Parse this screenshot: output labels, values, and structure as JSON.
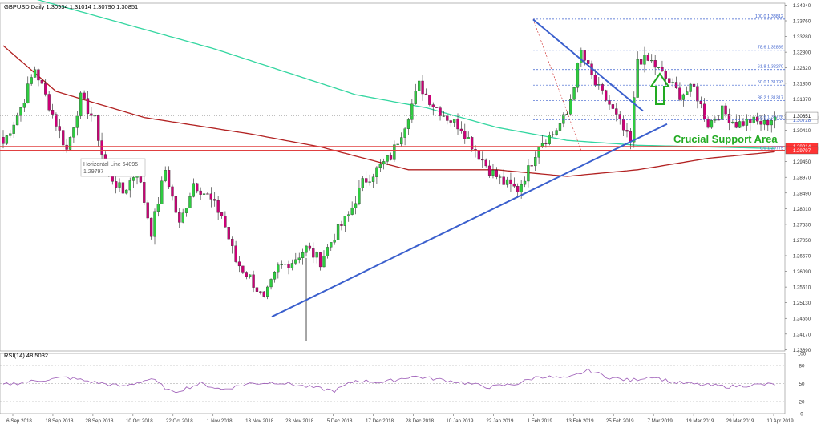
{
  "header": {
    "symbol_info": "GBPUSD,Daily  1.30934 1.31014 1.30790 1.30851",
    "rsi_label": "RSI(14) 48.5032"
  },
  "annotations": {
    "crucial_support": "Crucial Support Area",
    "horizontal_line_name": "Horizontal Line 64095",
    "horizontal_line_value": "1.29797"
  },
  "colors": {
    "bull": "#2ecc40",
    "bear": "#cc0077",
    "ma_fast": "#33d6a0",
    "ma_slow": "#b22222",
    "trendline": "#3a5fcd",
    "support": "#e04040",
    "fib": "#3a5fcd",
    "rsi": "#9b59b6",
    "arrow": "#22aa22",
    "text": "#333333",
    "grid": "#bbbbbb"
  },
  "chart_data": [
    {
      "type": "candlestick",
      "title": "GBPUSD,Daily",
      "price_axis_ticks": [
        "1.34240",
        "1.33760",
        "1.33280",
        "1.32800",
        "1.32320",
        "1.31850",
        "1.31370",
        "1.30890",
        "1.30410",
        "1.29930",
        "1.29450",
        "1.28970",
        "1.28490",
        "1.28010",
        "1.27530",
        "1.27050",
        "1.26570",
        "1.26090",
        "1.25610",
        "1.25130",
        "1.24650",
        "1.24170",
        "1.23690"
      ],
      "ylim": [
        1.2365,
        1.343
      ],
      "x_axis_ticks": [
        "6 Sep 2018",
        "18 Sep 2018",
        "28 Sep 2018",
        "10 Oct 2018",
        "22 Oct 2018",
        "1 Nov 2018",
        "13 Nov 2018",
        "23 Nov 2018",
        "5 Dec 2018",
        "17 Dec 2018",
        "28 Dec 2018",
        "10 Jan 2019",
        "22 Jan 2019",
        "1 Feb 2019",
        "13 Feb 2019",
        "25 Feb 2019",
        "7 Mar 2019",
        "19 Mar 2019",
        "29 Mar 2019",
        "10 Apr 2019"
      ],
      "current_price": "1.30851",
      "price_label_fib23": "1.30728",
      "price_label_support_top": "1.29914",
      "price_label_support_bottom": "1.29797",
      "fib_levels": [
        {
          "label": "100.0 1.33812",
          "value": 1.33812
        },
        {
          "label": "78.6 1.32859",
          "value": 1.32859
        },
        {
          "label": "61.8 1.32270",
          "value": 1.3227
        },
        {
          "label": "50.0 1.31793",
          "value": 1.31793
        },
        {
          "label": "38.2 1.31317",
          "value": 1.31317
        },
        {
          "label": "23.6 1.30728",
          "value": 1.30728
        },
        {
          "label": "0.0 1.29775",
          "value": 1.29775
        }
      ],
      "support_zone": [
        1.29797,
        1.29914
      ],
      "waypoints": [
        [
          0,
          1.3
        ],
        [
          5,
          1.311
        ],
        [
          9,
          1.323
        ],
        [
          14,
          1.309
        ],
        [
          18,
          1.298
        ],
        [
          22,
          1.314
        ],
        [
          26,
          1.307
        ],
        [
          29,
          1.292
        ],
        [
          34,
          1.285
        ],
        [
          38,
          1.292
        ],
        [
          42,
          1.273
        ],
        [
          46,
          1.292
        ],
        [
          50,
          1.275
        ],
        [
          54,
          1.288
        ],
        [
          58,
          1.284
        ],
        [
          62,
          1.278
        ],
        [
          66,
          1.264
        ],
        [
          70,
          1.259
        ],
        [
          74,
          1.252
        ],
        [
          78,
          1.262
        ],
        [
          82,
          1.264
        ],
        [
          86,
          1.268
        ],
        [
          90,
          1.264
        ],
        [
          94,
          1.272
        ],
        [
          98,
          1.278
        ],
        [
          102,
          1.288
        ],
        [
          106,
          1.292
        ],
        [
          110,
          1.296
        ],
        [
          114,
          1.306
        ],
        [
          118,
          1.318
        ],
        [
          122,
          1.312
        ],
        [
          126,
          1.308
        ],
        [
          130,
          1.305
        ],
        [
          134,
          1.298
        ],
        [
          138,
          1.292
        ],
        [
          142,
          1.288
        ],
        [
          146,
          1.286
        ],
        [
          149,
          1.292
        ],
        [
          152,
          1.3
        ],
        [
          156,
          1.303
        ],
        [
          160,
          1.309
        ],
        [
          164,
          1.328
        ],
        [
          168,
          1.318
        ],
        [
          172,
          1.312
        ],
        [
          176,
          1.304
        ],
        [
          178,
          1.3
        ],
        [
          180,
          1.326
        ],
        [
          184,
          1.325
        ],
        [
          188,
          1.32
        ],
        [
          192,
          1.315
        ],
        [
          196,
          1.317
        ],
        [
          200,
          1.306
        ],
        [
          204,
          1.31
        ],
        [
          208,
          1.306
        ],
        [
          212,
          1.307
        ],
        [
          216,
          1.306
        ],
        [
          219,
          1.3085
        ]
      ],
      "ma_fast": [
        [
          0,
          1.347
        ],
        [
          60,
          1.329
        ],
        [
          100,
          1.315
        ],
        [
          120,
          1.311
        ],
        [
          140,
          1.305
        ],
        [
          160,
          1.301
        ],
        [
          180,
          1.2995
        ],
        [
          219,
          1.2985
        ]
      ],
      "ma_slow": [
        [
          0,
          1.33
        ],
        [
          15,
          1.316
        ],
        [
          40,
          1.308
        ],
        [
          70,
          1.303
        ],
        [
          90,
          1.299
        ],
        [
          115,
          1.292
        ],
        [
          140,
          1.292
        ],
        [
          160,
          1.29
        ],
        [
          180,
          1.292
        ],
        [
          200,
          1.2955
        ],
        [
          219,
          1.2975
        ]
      ]
    },
    {
      "type": "line",
      "title": "RSI(14) 48.5032",
      "ylim": [
        0,
        100
      ],
      "y_ticks": [
        100,
        80,
        50,
        20,
        0
      ],
      "waypoints": [
        [
          0,
          48
        ],
        [
          10,
          55
        ],
        [
          18,
          60
        ],
        [
          26,
          52
        ],
        [
          34,
          45
        ],
        [
          42,
          58
        ],
        [
          48,
          35
        ],
        [
          56,
          50
        ],
        [
          62,
          40
        ],
        [
          70,
          50
        ],
        [
          78,
          52
        ],
        [
          86,
          45
        ],
        [
          94,
          38
        ],
        [
          100,
          55
        ],
        [
          108,
          52
        ],
        [
          116,
          62
        ],
        [
          122,
          58
        ],
        [
          130,
          52
        ],
        [
          138,
          44
        ],
        [
          146,
          50
        ],
        [
          152,
          62
        ],
        [
          160,
          58
        ],
        [
          166,
          72
        ],
        [
          172,
          60
        ],
        [
          178,
          55
        ],
        [
          184,
          62
        ],
        [
          190,
          52
        ],
        [
          198,
          48
        ],
        [
          206,
          45
        ],
        [
          214,
          48
        ],
        [
          219,
          49
        ]
      ]
    }
  ]
}
